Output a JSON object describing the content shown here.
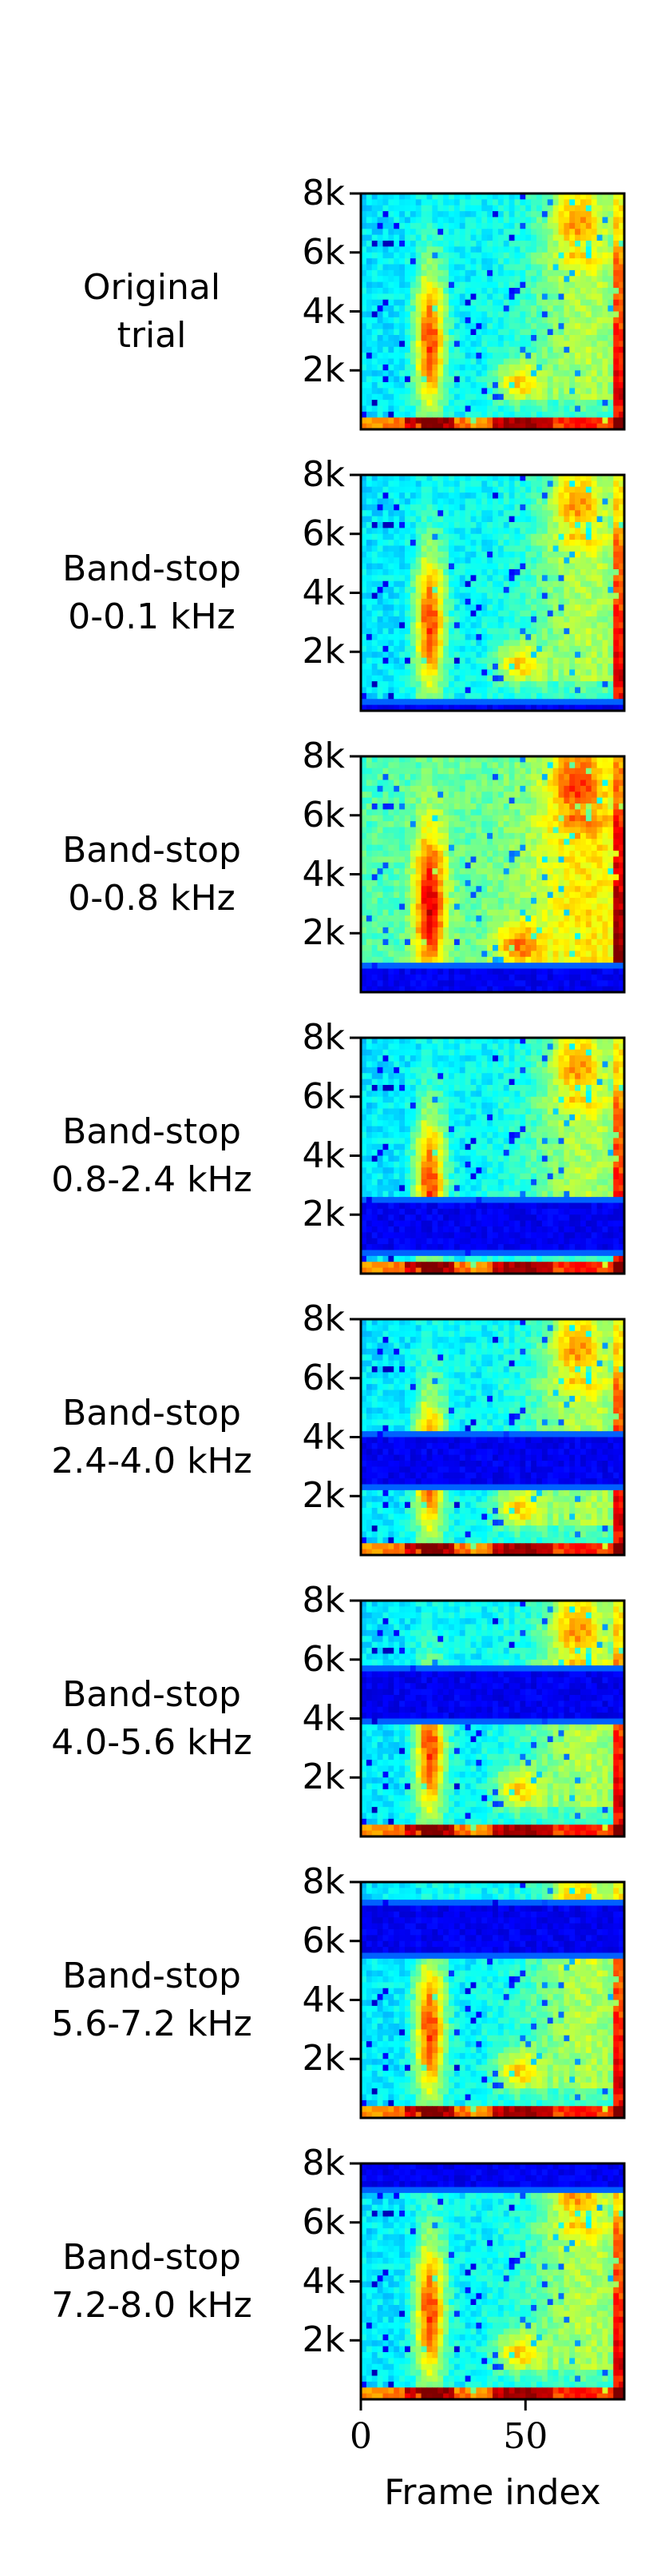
{
  "chart_data": {
    "type": "heatmap",
    "colormap": "jet",
    "xlabel": "Frame index",
    "xticks": [
      0,
      50
    ],
    "xlim": [
      0,
      80
    ],
    "yticks": [
      "2k",
      "4k",
      "6k",
      "8k"
    ],
    "ytick_values": [
      2000,
      4000,
      6000,
      8000
    ],
    "ylim": [
      0,
      8000
    ],
    "panels": [
      {
        "title_lines": [
          "Original",
          "trial"
        ],
        "stop_band_khz": null
      },
      {
        "title_lines": [
          "Band-stop",
          "0-0.1 kHz"
        ],
        "stop_band_khz": [
          0,
          0.1
        ]
      },
      {
        "title_lines": [
          "Band-stop",
          "0-0.8 kHz"
        ],
        "stop_band_khz": [
          0,
          0.8
        ]
      },
      {
        "title_lines": [
          "Band-stop",
          "0.8-2.4 kHz"
        ],
        "stop_band_khz": [
          0.8,
          2.4
        ]
      },
      {
        "title_lines": [
          "Band-stop",
          "2.4-4.0 kHz"
        ],
        "stop_band_khz": [
          2.4,
          4.0
        ]
      },
      {
        "title_lines": [
          "Band-stop",
          "4.0-5.6 kHz"
        ],
        "stop_band_khz": [
          4.0,
          5.6
        ]
      },
      {
        "title_lines": [
          "Band-stop",
          "5.6-7.2 kHz"
        ],
        "stop_band_khz": [
          5.6,
          7.2
        ]
      },
      {
        "title_lines": [
          "Band-stop",
          "7.2-8.0 kHz"
        ],
        "stop_band_khz": [
          7.2,
          8.0
        ]
      }
    ]
  }
}
